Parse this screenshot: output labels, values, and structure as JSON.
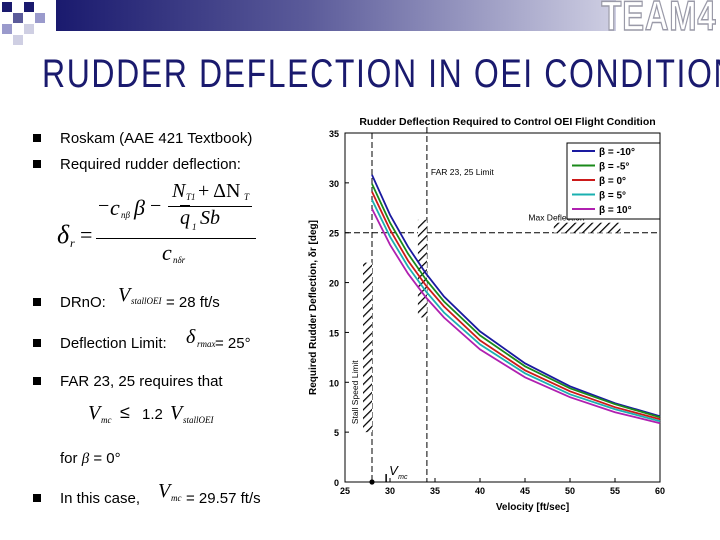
{
  "brand": "TEAM4",
  "title": "RUDDER DEFLECTION IN OEI CONDITIONS",
  "bullets": {
    "b1": "Roskam (AAE 421 Textbook)",
    "b2": "Required rudder deflection:",
    "b3_label": "DRnO:",
    "b3_value": "= 28 ft/s",
    "b4_label": "Deflection Limit:",
    "b4_value": "= 25°",
    "b5": "FAR 23, 25 requires that",
    "ineq_op": "≤",
    "ineq_factor": "1.2",
    "for_prefix": "for",
    "for_beta": "β",
    "for_value": "= 0°",
    "b6_label": "In this case,",
    "b6_value": "= 29.57 ft/s"
  },
  "formula": {
    "delta": "δ",
    "r": "r",
    "eq": "=",
    "minus": "−",
    "c": "c",
    "n_beta": "nβ",
    "beta": "β",
    "NT1": "N",
    "T1": "T1",
    "plus_dN": "+ ΔN",
    "T": "T",
    "q1": "q",
    "q_sub": "1",
    "Sb": "Sb",
    "n_dr": "nδr",
    "V": "V",
    "stall_oei": "stallOEI",
    "mc": "mc",
    "rmax": "rmax"
  },
  "chart_data": {
    "type": "line",
    "title": "Rudder Deflection Required to Control OEI Flight Condition",
    "xlabel": "Velocity [ft/sec]",
    "ylabel": "Required Rudder Deflection, δr [deg]",
    "xlim": [
      25,
      60
    ],
    "ylim": [
      0,
      35
    ],
    "xticks": [
      "25",
      "30",
      "35",
      "40",
      "45",
      "50",
      "55",
      "60"
    ],
    "yticks": [
      "0",
      "5",
      "10",
      "15",
      "20",
      "25",
      "30",
      "35"
    ],
    "legend": "top-right",
    "series": [
      {
        "name": "β = -10°",
        "color": "#1a1aa0",
        "x": [
          28,
          30,
          32,
          34,
          36,
          40,
          45,
          50,
          55,
          60
        ],
        "y": [
          30.8,
          26.8,
          23.6,
          20.9,
          18.6,
          15.1,
          11.9,
          9.6,
          7.9,
          6.6
        ]
      },
      {
        "name": "β = -5°",
        "color": "#1a8a1a",
        "x": [
          28,
          30,
          32,
          34,
          36,
          40,
          45,
          50,
          55,
          60
        ],
        "y": [
          29.9,
          26.0,
          22.9,
          20.3,
          18.1,
          14.7,
          11.6,
          9.4,
          7.8,
          6.5
        ]
      },
      {
        "name": "β = 0°",
        "color": "#cc1a1a",
        "x": [
          28,
          30,
          32,
          34,
          36,
          40,
          45,
          50,
          55,
          60
        ],
        "y": [
          29.1,
          25.3,
          22.2,
          19.7,
          17.6,
          14.2,
          11.2,
          9.1,
          7.5,
          6.3
        ]
      },
      {
        "name": "β = 5°",
        "color": "#1ab0b0",
        "x": [
          28,
          30,
          32,
          34,
          36,
          40,
          45,
          50,
          55,
          60
        ],
        "y": [
          28.3,
          24.6,
          21.6,
          19.1,
          17.0,
          13.8,
          10.9,
          8.8,
          7.3,
          6.1
        ]
      },
      {
        "name": "β = 10°",
        "color": "#b020b0",
        "x": [
          28,
          30,
          32,
          34,
          36,
          40,
          45,
          50,
          55,
          60
        ],
        "y": [
          27.4,
          23.8,
          20.9,
          18.5,
          16.5,
          13.3,
          10.5,
          8.5,
          7.0,
          5.9
        ]
      }
    ],
    "annotations": {
      "far_limit_label": "FAR 23, 25 Limit",
      "far_limit_x": 34.1,
      "max_deflection_label": "Max Deflection",
      "max_deflection_y": 25,
      "stall_limit_label": "Stall Speed Limit",
      "stall_limit_x": 28,
      "vmc_label": "V",
      "vmc_sub": "mc",
      "vmc_x": 29.57
    }
  }
}
